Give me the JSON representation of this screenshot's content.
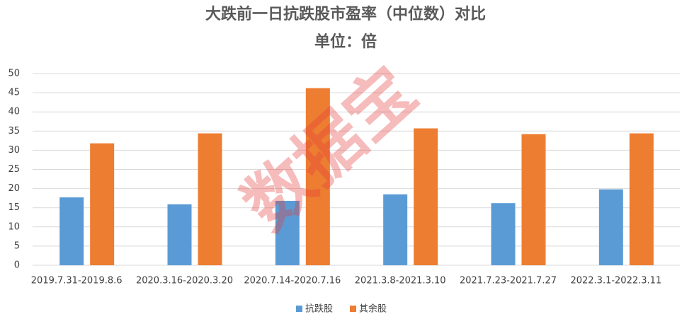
{
  "chart_data": {
    "type": "bar",
    "title": "大跌前一日抗跌股市盈率（中位数）对比",
    "subtitle": "单位：倍",
    "watermark": "数据宝",
    "categories": [
      "2019.7.31-2019.8.6",
      "2020.3.16-2020.3.20",
      "2020.7.14-2020.7.16",
      "2021.3.8-2021.3.10",
      "2021.7.23-2021.7.27",
      "2022.3.1-2022.3.11"
    ],
    "series": [
      {
        "name": "抗跌股",
        "color": "#5b9bd5",
        "values": [
          17.7,
          15.9,
          16.8,
          18.5,
          16.2,
          19.8
        ]
      },
      {
        "name": "其余股",
        "color": "#ed7d31",
        "values": [
          31.8,
          34.4,
          46.2,
          35.7,
          34.2,
          34.4
        ]
      }
    ],
    "ylim": [
      0,
      50
    ],
    "yticks": [
      0,
      5,
      10,
      15,
      20,
      25,
      30,
      35,
      40,
      45,
      50
    ],
    "grid": true,
    "legend": "bottom"
  }
}
